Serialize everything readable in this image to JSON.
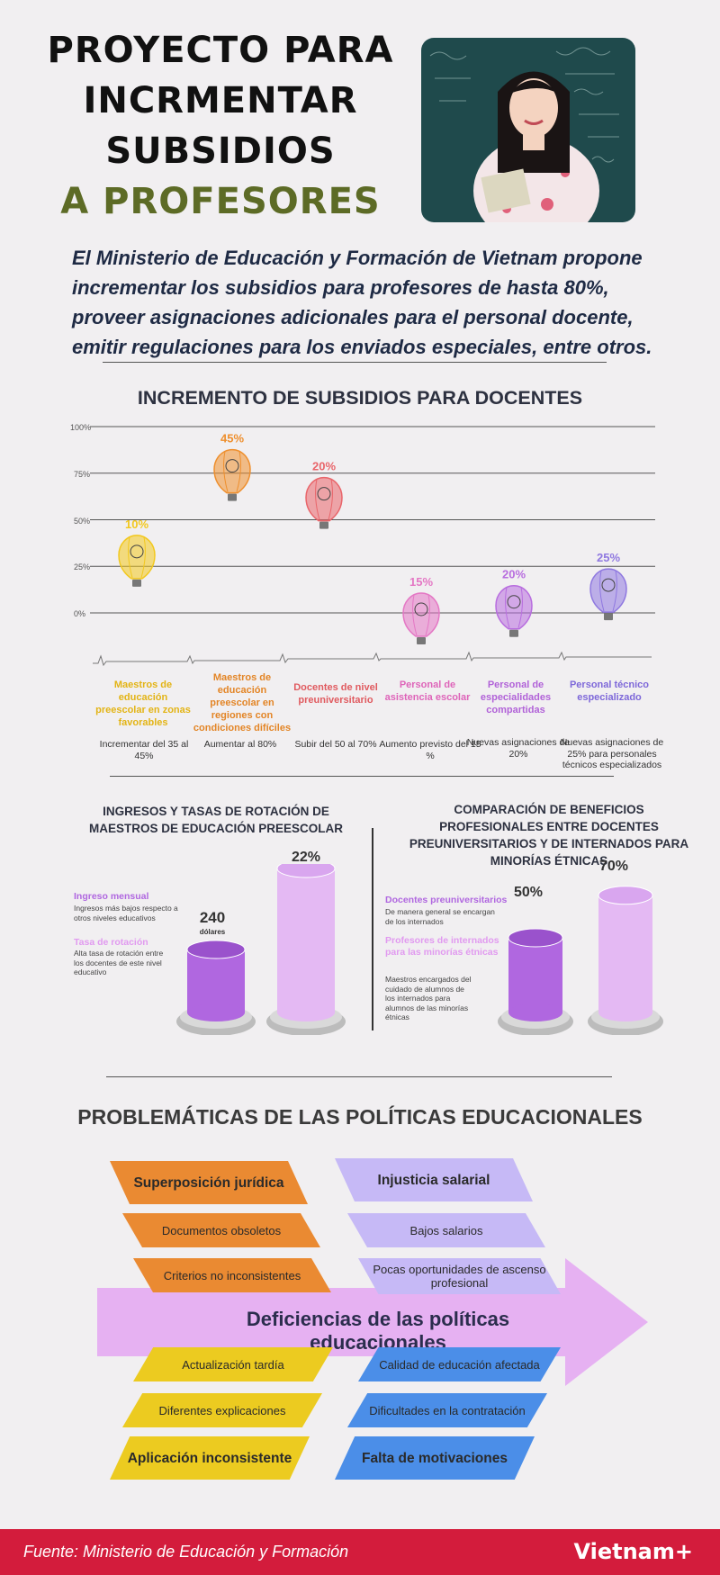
{
  "header": {
    "title_lines": [
      "PROYECTO PARA",
      "INCRMENTAR",
      "SUBSIDIOS",
      "A PROFESORES"
    ],
    "intro": "El Ministerio de Educación y Formación de Vietnam propone incrementar los subsidios para profesores de hasta 80%, proveer asignaciones adicionales para el personal docente, emitir regulaciones para los enviados especiales, entre otros."
  },
  "chart_data": [
    {
      "type": "scatter",
      "title": "INCREMENTO DE SUBSIDIOS PARA DOCENTES",
      "y_ticks": [
        "100%",
        "75%",
        "50%",
        "25%",
        "0%"
      ],
      "ylim": [
        0,
        100
      ],
      "categories": [
        "Maestros de educación preescolar en zonas favorables",
        "Maestros de educación preescolar en regiones con condiciones difíciles",
        "Docentes de nivel preuniversitario",
        "Personal de asistencia escolar",
        "Personal de especialidades compartidas",
        "Personal técnico especializado"
      ],
      "values": [
        10,
        45,
        20,
        15,
        20,
        25
      ],
      "value_labels": [
        "10%",
        "45%",
        "20%",
        "15%",
        "20%",
        "25%"
      ],
      "descriptions": [
        "Incrementar del 35 al 45%",
        "Aumentar al 80%",
        "Subir del 50 al 70%",
        "Aumento previsto del 15 %",
        "Nuevas asignaciones de 20%",
        "Nuevas asignaciones de 25% para personales técnicos especializados"
      ],
      "colors": [
        "#f2c81e",
        "#ee8f2e",
        "#e9656a",
        "#e477c4",
        "#b86ddf",
        "#8f78e0"
      ],
      "balloon_positions_pct": [
        31,
        77,
        62,
        0,
        4,
        13
      ]
    },
    {
      "type": "bar",
      "title": "INGRESOS Y TASAS DE ROTACIÓN DE MAESTROS DE EDUCACIÓN PREESCOLAR",
      "categories": [
        "Ingreso mensual",
        "Tasa de rotación"
      ],
      "value_labels": [
        "240",
        "22%"
      ],
      "value_units": [
        "dólares",
        ""
      ],
      "descriptions": [
        "Ingresos más bajos respecto a otros niveles educativos",
        "Alta tasa de rotación entre los docentes de este nivel educativo"
      ],
      "colors": [
        "#b067e0",
        "#e4b9f3"
      ]
    },
    {
      "type": "bar",
      "title": "COMPARACIÓN DE BENEFICIOS PROFESIONALES ENTRE DOCENTES PREUNIVERSITARIOS Y DE INTERNADOS PARA MINORÍAS ÉTNICAS",
      "categories": [
        "Docentes preuniversitarios",
        "Profesores de internados para las minorías étnicas"
      ],
      "values": [
        50,
        70
      ],
      "value_labels": [
        "50%",
        "70%"
      ],
      "descriptions": [
        "De manera general se encargan de los internados",
        "Maestros encargados del cuidado de alumnos de los internados para alumnos de las minorías étnicas"
      ],
      "colors": [
        "#b067e0",
        "#e4b9f3"
      ]
    }
  ],
  "problems": {
    "title": "PROBLEMÁTICAS DE LAS POLÍTICAS EDUCACIONALES",
    "center": "Deficiencias de las políticas educacionales",
    "top_left": [
      "Superposición jurídica",
      "Documentos obsoletos",
      "Criterios no inconsistentes"
    ],
    "top_right": [
      "Injusticia salarial",
      "Bajos salarios",
      "Pocas oportunidades de ascenso profesional"
    ],
    "bottom_left": [
      "Actualización tardía",
      "Diferentes explicaciones",
      "Aplicación inconsistente"
    ],
    "bottom_right": [
      "Calidad de educación afectada",
      "Dificultades en la contratación",
      "Falta de motivaciones"
    ]
  },
  "footer": {
    "source": "Fuente: Ministerio de Educación y Formación",
    "brand": "Vietnam+"
  }
}
